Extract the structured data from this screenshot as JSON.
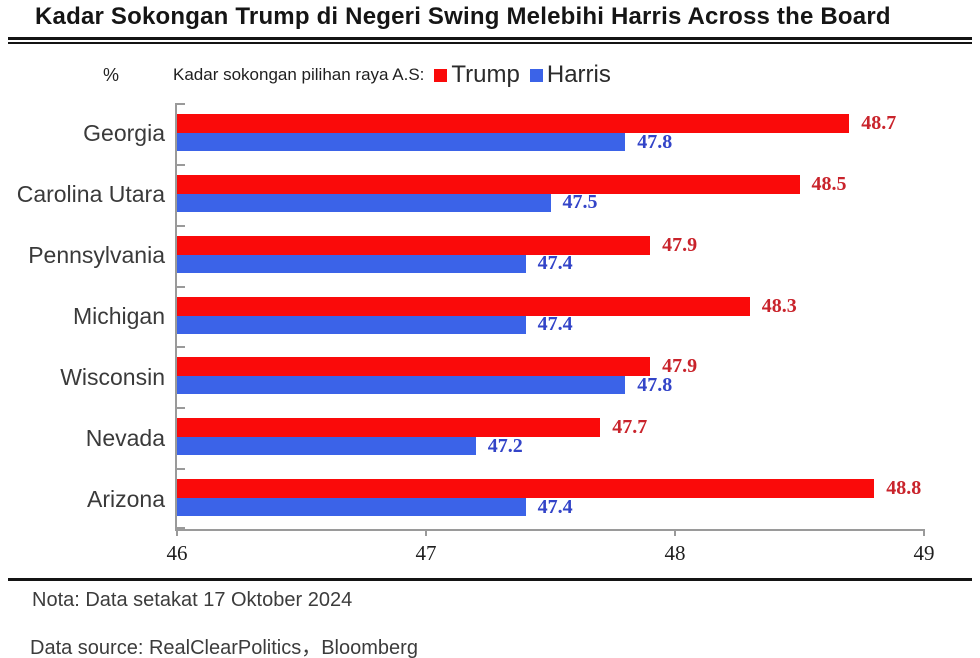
{
  "title": "Kadar Sokongan Trump di Negeri Swing Melebihi Harris Across the Board",
  "legend": {
    "unit_label": "%",
    "caption": "Kadar sokongan pilihan raya A.S:"
  },
  "chart_data": {
    "type": "bar",
    "orientation": "horizontal",
    "title": "Kadar Sokongan Trump di Negeri Swing Melebihi Harris Across the Board",
    "categories": [
      "Georgia",
      "Carolina Utara",
      "Pennsylvania",
      "Michigan",
      "Wisconsin",
      "Nevada",
      "Arizona"
    ],
    "series": [
      {
        "name": "Trump",
        "color": "#fa0a0a",
        "label_color": "#c9232b",
        "values": [
          48.7,
          48.5,
          47.9,
          48.3,
          47.9,
          47.7,
          48.8
        ]
      },
      {
        "name": "Harris",
        "color": "#3b63e8",
        "label_color": "#3344c8",
        "values": [
          47.8,
          47.5,
          47.4,
          47.4,
          47.8,
          47.2,
          47.4
        ]
      }
    ],
    "xlim": [
      46,
      49
    ],
    "xticks": [
      "46",
      "47",
      "48",
      "49"
    ],
    "xlabel": "",
    "ylabel": "%",
    "grid": "off",
    "legend_position": "top"
  },
  "footer": {
    "note": "Nota: Data setakat 17 Oktober 2024",
    "source": "Data source: RealClearPolitics，Bloomberg"
  }
}
